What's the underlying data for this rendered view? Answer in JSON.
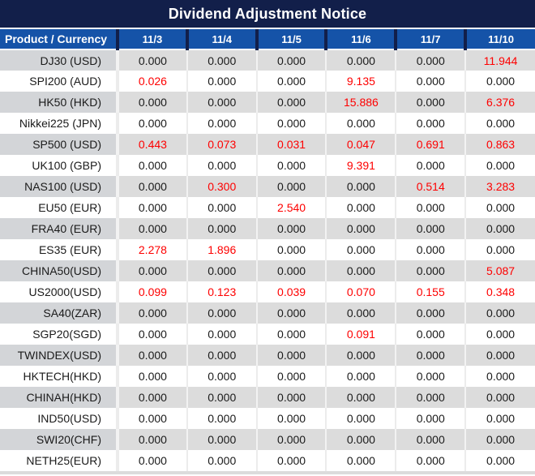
{
  "colors": {
    "title_bg": "#121f4a",
    "header_bg": "#1553a8",
    "row_alt_product_bg": "#d3d5d8",
    "row_alt_value_bg": "#dcdcdc",
    "highlight_red": "#fe0000",
    "text_dark": "#1a1a1a"
  },
  "chart_data": {
    "type": "table",
    "title": "Dividend Adjustment Notice",
    "columns": [
      "Product / Currency",
      "11/3",
      "11/4",
      "11/5",
      "11/6",
      "11/7",
      "11/10"
    ],
    "rows": [
      [
        "DJ30 (USD)",
        "0.000",
        "0.000",
        "0.000",
        "0.000",
        "0.000",
        "11.944"
      ],
      [
        "SPI200 (AUD)",
        "0.026",
        "0.000",
        "0.000",
        "9.135",
        "0.000",
        "0.000"
      ],
      [
        "HK50 (HKD)",
        "0.000",
        "0.000",
        "0.000",
        "15.886",
        "0.000",
        "6.376"
      ],
      [
        "Nikkei225 (JPN)",
        "0.000",
        "0.000",
        "0.000",
        "0.000",
        "0.000",
        "0.000"
      ],
      [
        "SP500 (USD)",
        "0.443",
        "0.073",
        "0.031",
        "0.047",
        "0.691",
        "0.863"
      ],
      [
        "UK100 (GBP)",
        "0.000",
        "0.000",
        "0.000",
        "9.391",
        "0.000",
        "0.000"
      ],
      [
        "NAS100 (USD)",
        "0.000",
        "0.300",
        "0.000",
        "0.000",
        "0.514",
        "3.283"
      ],
      [
        "EU50 (EUR)",
        "0.000",
        "0.000",
        "2.540",
        "0.000",
        "0.000",
        "0.000"
      ],
      [
        "FRA40 (EUR)",
        "0.000",
        "0.000",
        "0.000",
        "0.000",
        "0.000",
        "0.000"
      ],
      [
        "ES35 (EUR)",
        "2.278",
        "1.896",
        "0.000",
        "0.000",
        "0.000",
        "0.000"
      ],
      [
        "CHINA50(USD)",
        "0.000",
        "0.000",
        "0.000",
        "0.000",
        "0.000",
        "5.087"
      ],
      [
        "US2000(USD)",
        "0.099",
        "0.123",
        "0.039",
        "0.070",
        "0.155",
        "0.348"
      ],
      [
        "SA40(ZAR)",
        "0.000",
        "0.000",
        "0.000",
        "0.000",
        "0.000",
        "0.000"
      ],
      [
        "SGP20(SGD)",
        "0.000",
        "0.000",
        "0.000",
        "0.091",
        "0.000",
        "0.000"
      ],
      [
        "TWINDEX(USD)",
        "0.000",
        "0.000",
        "0.000",
        "0.000",
        "0.000",
        "0.000"
      ],
      [
        "HKTECH(HKD)",
        "0.000",
        "0.000",
        "0.000",
        "0.000",
        "0.000",
        "0.000"
      ],
      [
        "CHINAH(HKD)",
        "0.000",
        "0.000",
        "0.000",
        "0.000",
        "0.000",
        "0.000"
      ],
      [
        "IND50(USD)",
        "0.000",
        "0.000",
        "0.000",
        "0.000",
        "0.000",
        "0.000"
      ],
      [
        "SWI20(CHF)",
        "0.000",
        "0.000",
        "0.000",
        "0.000",
        "0.000",
        "0.000"
      ],
      [
        "NETH25(EUR)",
        "0.000",
        "0.000",
        "0.000",
        "0.000",
        "0.000",
        "0.000"
      ]
    ]
  }
}
